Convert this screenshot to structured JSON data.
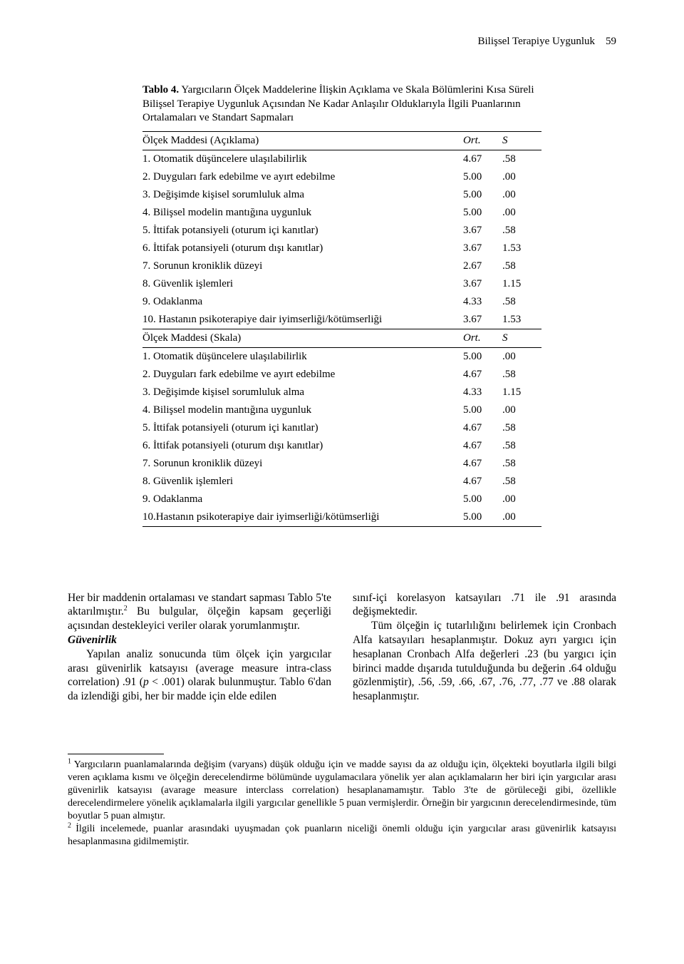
{
  "running_head": {
    "title": "Bilişsel Terapiye Uygunluk",
    "page": "59"
  },
  "table": {
    "label": "Tablo 4.",
    "caption": "Yargıcıların Ölçek Maddelerine İlişkin Açıklama ve Skala Bölümlerini Kısa Süreli Bilişsel Terapiye Uygunluk Açısından Ne Kadar Anlaşılır Olduklarıyla İlgili Puanlarının Ortalamaları ve Standart Sapmaları",
    "header1": {
      "label": "Ölçek Maddesi (Açıklama)",
      "ort": "Ort.",
      "s": "S"
    },
    "rows1": [
      {
        "label": "1. Otomatik düşüncelere ulaşılabilirlik",
        "ort": "4.67",
        "s": ".58"
      },
      {
        "label": "2. Duyguları fark edebilme ve ayırt edebilme",
        "ort": "5.00",
        "s": ".00"
      },
      {
        "label": "3. Değişimde kişisel sorumluluk alma",
        "ort": "5.00",
        "s": ".00"
      },
      {
        "label": "4. Bilişsel modelin mantığına uygunluk",
        "ort": "5.00",
        "s": ".00"
      },
      {
        "label": "5. İttifak potansiyeli (oturum içi kanıtlar)",
        "ort": "3.67",
        "s": ".58"
      },
      {
        "label": "6. İttifak potansiyeli (oturum dışı kanıtlar)",
        "ort": "3.67",
        "s": "1.53"
      },
      {
        "label": "7. Sorunun kroniklik düzeyi",
        "ort": "2.67",
        "s": ".58"
      },
      {
        "label": "8. Güvenlik işlemleri",
        "ort": "3.67",
        "s": "1.15"
      },
      {
        "label": "9. Odaklanma",
        "ort": "4.33",
        "s": ".58"
      },
      {
        "label": "10. Hastanın psikoterapiye dair iyimserliği/kötümserliği",
        "ort": "3.67",
        "s": "1.53"
      }
    ],
    "header2": {
      "label": "Ölçek Maddesi (Skala)",
      "ort": "Ort.",
      "s": "S"
    },
    "rows2": [
      {
        "label": "1. Otomatik düşüncelere ulaşılabilirlik",
        "ort": "5.00",
        "s": ".00"
      },
      {
        "label": "2. Duyguları fark edebilme ve ayırt edebilme",
        "ort": "4.67",
        "s": ".58"
      },
      {
        "label": "3. Değişimde kişisel sorumluluk alma",
        "ort": "4.33",
        "s": "1.15"
      },
      {
        "label": "4. Bilişsel modelin mantığına uygunluk",
        "ort": "5.00",
        "s": ".00"
      },
      {
        "label": "5. İttifak potansiyeli (oturum içi kanıtlar)",
        "ort": "4.67",
        "s": ".58"
      },
      {
        "label": "6. İttifak potansiyeli (oturum dışı kanıtlar)",
        "ort": "4.67",
        "s": ".58"
      },
      {
        "label": "7. Sorunun kroniklik düzeyi",
        "ort": "4.67",
        "s": ".58"
      },
      {
        "label": "8. Güvenlik işlemleri",
        "ort": "4.67",
        "s": ".58"
      },
      {
        "label": "9. Odaklanma",
        "ort": "5.00",
        "s": ".00"
      },
      {
        "label": "10.Hastanın psikoterapiye dair iyimserliği/kötümserliği",
        "ort": "5.00",
        "s": ".00"
      }
    ]
  },
  "body": {
    "left": {
      "p1a": "Her bir maddenin ortalaması ve standart sapması Tablo 5'te aktarılmıştır.",
      "p1b": " Bu bulgular, ölçeğin kapsam geçerliği açısından destekleyici veriler olarak yorumlanmıştır.",
      "heading": "Güvenirlik",
      "p2_pre": "Yapılan analiz sonucunda tüm ölçek için yargıcılar arası güvenirlik katsayısı (average measure intra-class correlation) .91 (",
      "p2_ital": "p",
      "p2_post": " < .001) olarak bulunmuştur. Tablo 6'dan da izlendiği gibi, her bir madde için elde edilen"
    },
    "right": {
      "p1": "sınıf-içi korelasyon katsayıları .71 ile .91 arasında değişmektedir.",
      "p2": "Tüm ölçeğin iç tutarlılığını belirlemek için Cronbach Alfa katsayıları hesaplanmıştır. Dokuz ayrı yargıcı için hesaplanan Cronbach Alfa değerleri .23 (bu yargıcı için birinci madde dışarıda tutulduğunda bu değerin .64 olduğu gözlenmiştir), .56, .59, .66, .67, .76, .77, .77 ve .88 olarak hesaplanmıştır."
    }
  },
  "footnotes": {
    "n1": "Yargıcıların puanlamalarında değişim (varyans) düşük olduğu için ve madde sayısı da az olduğu için, ölçekteki boyutlarla ilgili bilgi veren açıklama kısmı ve ölçeğin derecelendirme bölümünde uygulamacılara yönelik yer alan açıklamaların her biri için yargıcılar arası güvenirlik katsayısı (avarage measure interclass correlation) hesaplanamamıştır. Tablo 3'te de görüleceği gibi, özellikle derecelendirmelere yönelik açıklamalarla ilgili yargıcılar genellikle 5 puan vermişlerdir. Örneğin bir yargıcının derecelendirmesinde, tüm boyutlar 5 puan almıştır.",
    "n2": "İlgili incelemede, puanlar arasındaki uyuşmadan çok puanların niceliği önemli olduğu için yargıcılar arası güvenirlik katsayısı hesaplanmasına gidilmemiştir."
  }
}
